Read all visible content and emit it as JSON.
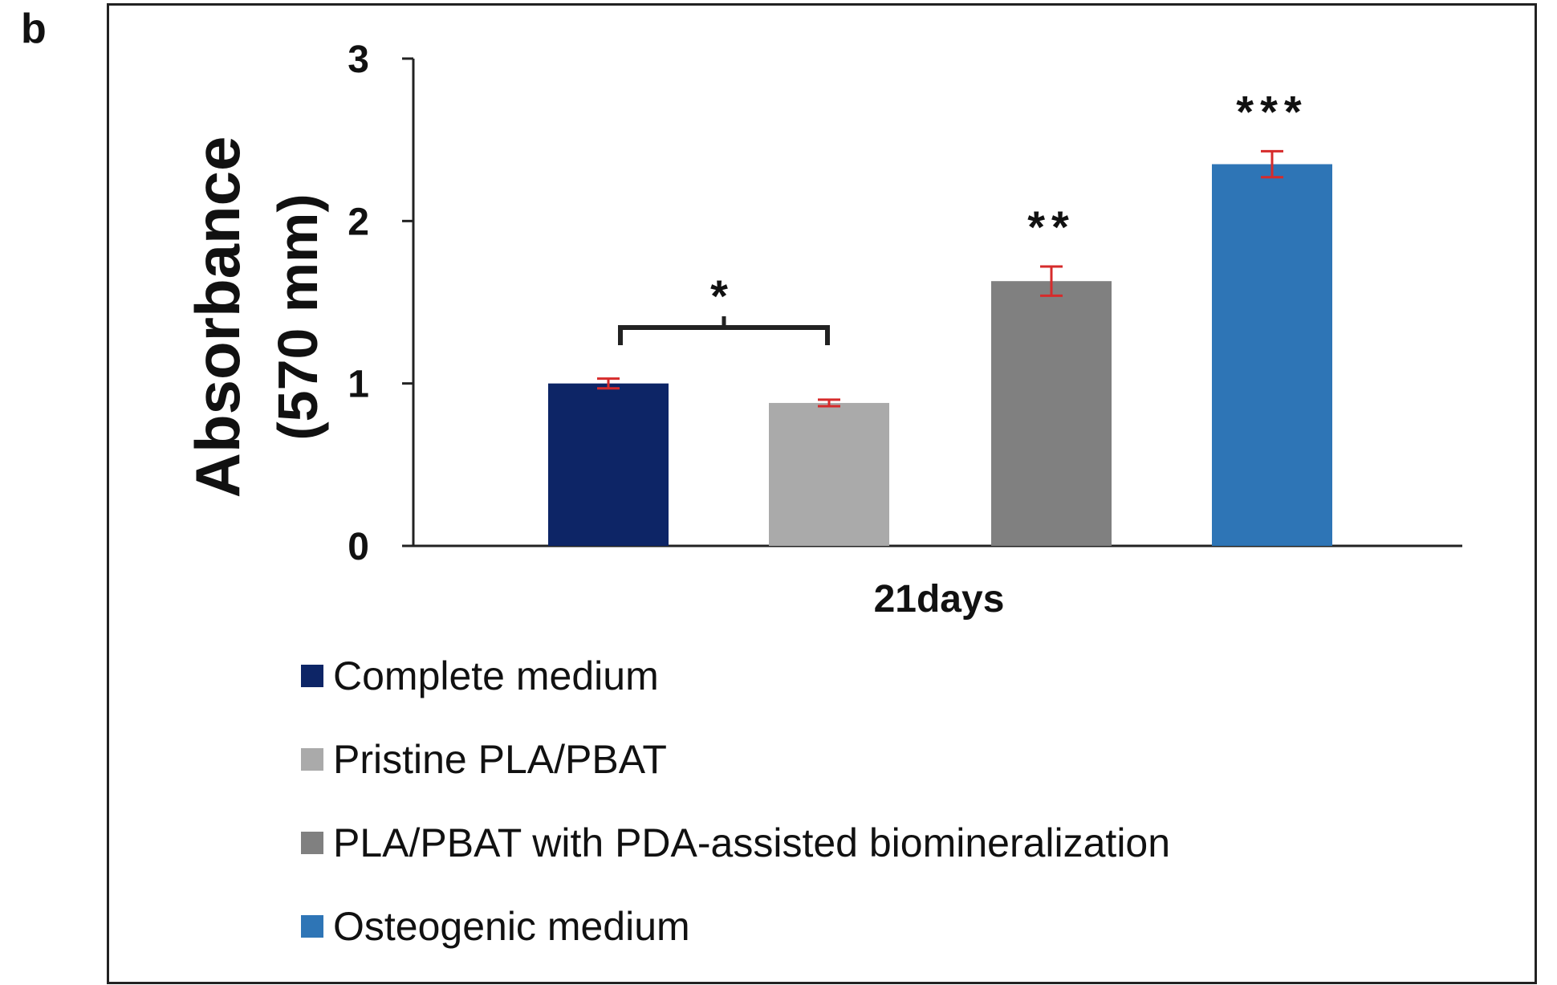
{
  "panel_label": "b",
  "colors": {
    "complete_medium": "#0d2566",
    "pristine": "#aaaaaa",
    "pda": "#808080",
    "osteogenic": "#2e75b6",
    "error_bar": "#d62b2b"
  },
  "chart_data": {
    "type": "bar",
    "categories": [
      "Complete medium",
      "Pristine PLA/PBAT",
      "PLA/PBAT with PDA-assisted biomineralization",
      "Osteogenic medium"
    ],
    "values": [
      1.0,
      0.88,
      1.63,
      2.35
    ],
    "errors": [
      0.03,
      0.02,
      0.09,
      0.08
    ],
    "significance": [
      "",
      "",
      "**",
      "***"
    ],
    "bracket": {
      "from": 0,
      "to": 1,
      "label": "*"
    },
    "xlabel": "21days",
    "ylabel_line1": "Absorbance",
    "ylabel_line2": "(570 mm)",
    "ylim": [
      0,
      3
    ],
    "yticks": [
      "0",
      "1",
      "2",
      "3"
    ],
    "legend": [
      "Complete medium",
      "Pristine PLA/PBAT",
      "PLA/PBAT with PDA-assisted biomineralization",
      "Osteogenic medium"
    ]
  }
}
